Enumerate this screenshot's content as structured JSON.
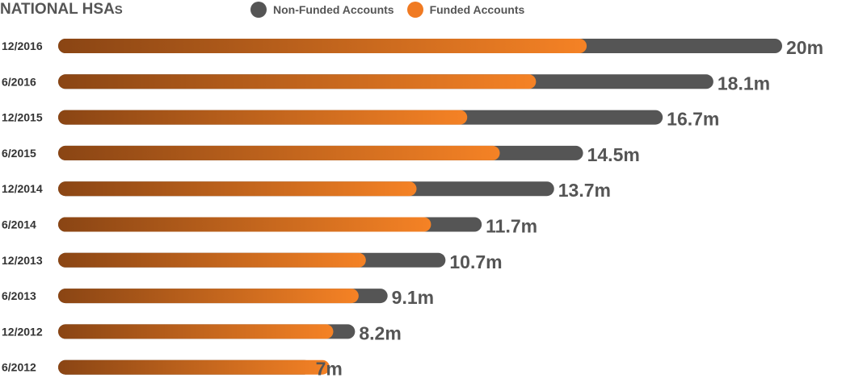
{
  "chart_data": {
    "type": "bar",
    "orientation": "horizontal",
    "stacked": true,
    "title": "NATIONAL HSAs",
    "legend": {
      "placement": "top",
      "entries": [
        {
          "name": "Non-Funded Accounts",
          "color": "#555555"
        },
        {
          "name": "Funded Accounts",
          "color": "#f07a22"
        }
      ]
    },
    "categories": [
      "12/2016",
      "6/2016",
      "12/2015",
      "6/2015",
      "12/2014",
      "6/2014",
      "12/2013",
      "6/2013",
      "12/2012",
      "6/2012"
    ],
    "total_labels": [
      "20m",
      "18.1m",
      "16.7m",
      "14.5m",
      "13.7m",
      "11.7m",
      "10.7m",
      "9.1m",
      "8.2m",
      "7m"
    ],
    "totals": [
      20,
      18.1,
      16.7,
      14.5,
      13.7,
      11.7,
      10.7,
      9.1,
      8.2,
      7
    ],
    "series": [
      {
        "name": "Funded Accounts",
        "values": [
          14.6,
          13.2,
          11.3,
          12.2,
          9.9,
          10.3,
          8.5,
          8.3,
          7.6,
          7.5
        ]
      },
      {
        "name": "Non-Funded Accounts",
        "values": [
          5.4,
          4.9,
          5.4,
          2.3,
          3.8,
          1.4,
          2.2,
          0.8,
          0.6,
          -0.5
        ]
      }
    ],
    "units": "millions of accounts",
    "grid": false
  },
  "colors": {
    "funded_start": "#8a4514",
    "funded_end": "#f58225",
    "non_funded": "#555555",
    "title": "#555555",
    "value_label": "#555555",
    "category_label": "#333333"
  }
}
